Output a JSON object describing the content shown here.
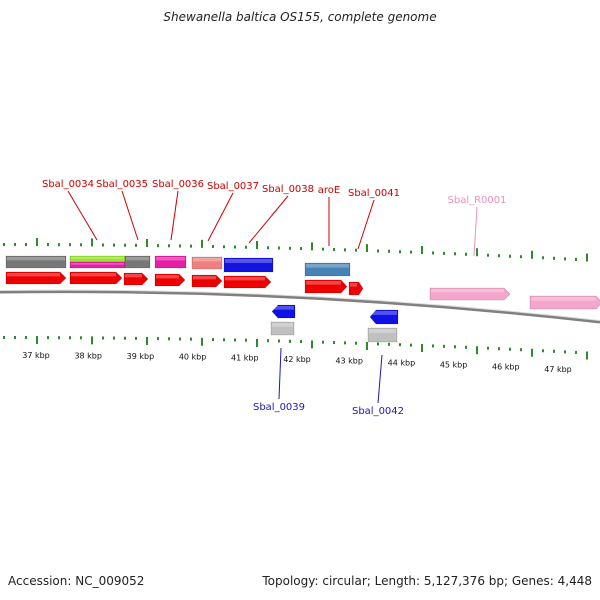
{
  "title": "Shewanella baltica OS155, complete genome",
  "footer": {
    "accession": "Accession: NC_009052",
    "summary": "Topology: circular; Length: 5,127,376 bp; Genes: 4,448"
  },
  "colors": {
    "backbone": "#808080",
    "tick": "#2d8a2d",
    "forward_cds": "#ee0000",
    "reverse_cds": "#1010e8",
    "label_forward": "#cc0000",
    "label_reverse": "#1a1ab0",
    "label_rna": "#f090bc",
    "rna": "#f4a6cc"
  },
  "scale": {
    "unit": "kbp",
    "labels": [
      "37 kbp",
      "38 kbp",
      "39 kbp",
      "40 kbp",
      "41 kbp",
      "42 kbp",
      "43 kbp",
      "44 kbp",
      "45 kbp",
      "46 kbp",
      "47 kbp"
    ]
  },
  "genes": [
    {
      "label": "Sbal_0034",
      "strand": "+",
      "kind": "cds"
    },
    {
      "label": "Sbal_0035",
      "strand": "+",
      "kind": "cds"
    },
    {
      "label": "Sbal_0036",
      "strand": "+",
      "kind": "cds"
    },
    {
      "label": "Sbal_0037",
      "strand": "+",
      "kind": "cds"
    },
    {
      "label": "Sbal_0038",
      "strand": "+",
      "kind": "cds"
    },
    {
      "label": "aroE",
      "strand": "+",
      "kind": "cds"
    },
    {
      "label": "Sbal_0041",
      "strand": "+",
      "kind": "cds"
    },
    {
      "label": "Sbal_R0001",
      "strand": "+",
      "kind": "rna"
    },
    {
      "label": "Sbal_0039",
      "strand": "-",
      "kind": "cds"
    },
    {
      "label": "Sbal_0042",
      "strand": "-",
      "kind": "cds"
    }
  ]
}
